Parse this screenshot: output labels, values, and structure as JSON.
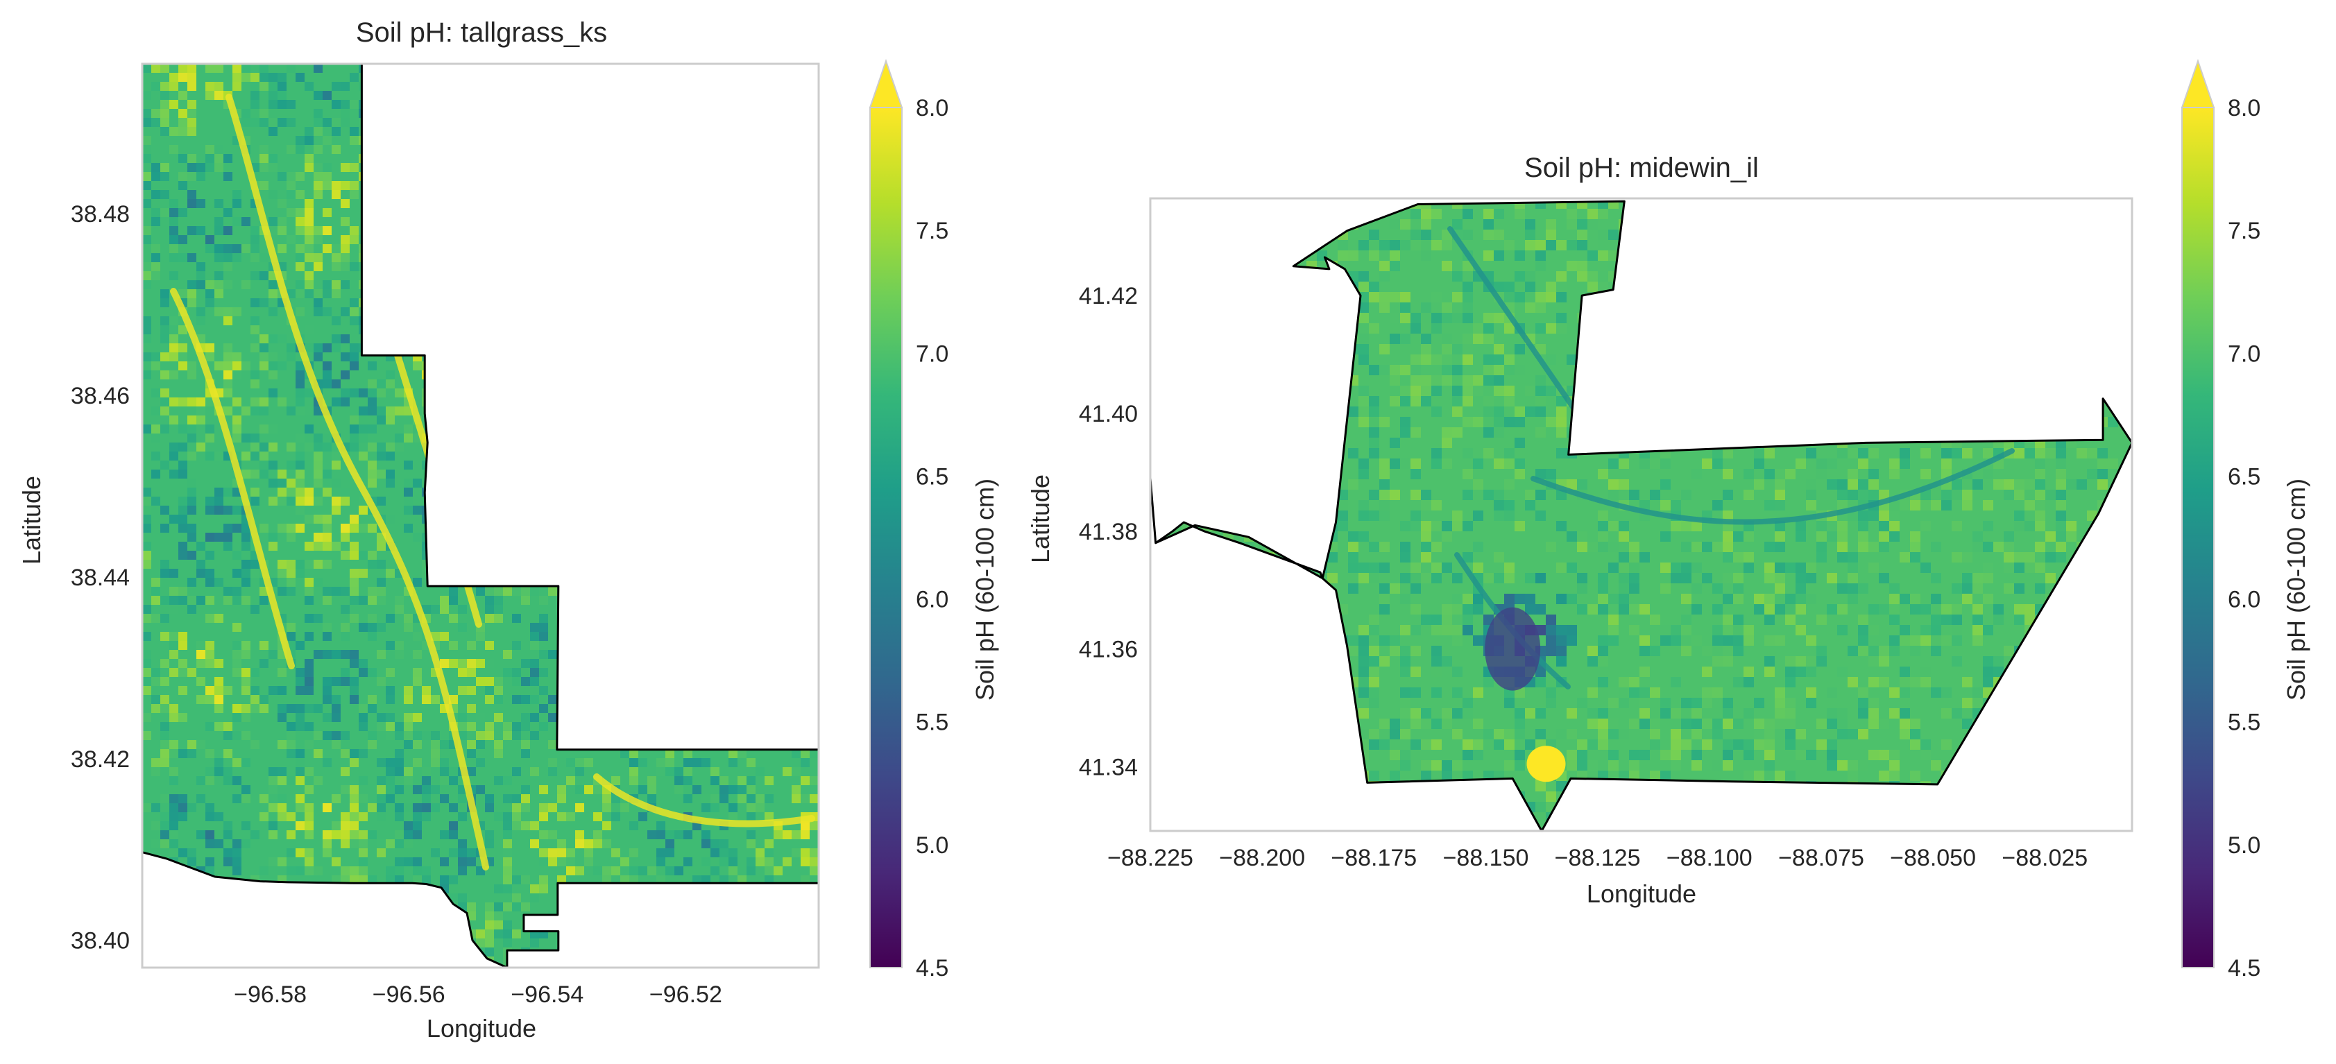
{
  "figure": {
    "panels": [
      {
        "id": "tallgrass_ks",
        "title": "Soil pH: tallgrass_ks",
        "xlabel": "Longitude",
        "ylabel": "Latitude",
        "xlim": [
          -96.5985,
          -96.5008
        ],
        "ylim": [
          38.397,
          38.4965
        ],
        "xticks": [
          {
            "value": -96.58,
            "label": "−96.58"
          },
          {
            "value": -96.56,
            "label": "−96.56"
          },
          {
            "value": -96.54,
            "label": "−96.54"
          },
          {
            "value": -96.52,
            "label": "−96.52"
          }
        ],
        "yticks": [
          {
            "value": 38.4,
            "label": "38.40"
          },
          {
            "value": 38.42,
            "label": "38.42"
          },
          {
            "value": 38.44,
            "label": "38.44"
          },
          {
            "value": 38.46,
            "label": "38.46"
          },
          {
            "value": 38.48,
            "label": "38.48"
          }
        ],
        "boundary": [
          [
            -96.5985,
            38.4965
          ],
          [
            -96.5668,
            38.4965
          ],
          [
            -96.5668,
            38.4644
          ],
          [
            -96.5577,
            38.4644
          ],
          [
            -96.5577,
            38.458
          ],
          [
            -96.5573,
            38.4548
          ],
          [
            -96.5577,
            38.4493
          ],
          [
            -96.5573,
            38.439
          ],
          [
            -96.5384,
            38.439
          ],
          [
            -96.5386,
            38.421
          ],
          [
            -96.5008,
            38.421
          ],
          [
            -96.5008,
            38.4063
          ],
          [
            -96.5385,
            38.4063
          ],
          [
            -96.5385,
            38.4028
          ],
          [
            -96.5434,
            38.4028
          ],
          [
            -96.5434,
            38.401
          ],
          [
            -96.5384,
            38.401
          ],
          [
            -96.5384,
            38.3989
          ],
          [
            -96.5458,
            38.3989
          ],
          [
            -96.5458,
            38.397
          ],
          [
            -96.5487,
            38.398
          ],
          [
            -96.5508,
            38.4
          ],
          [
            -96.5516,
            38.403
          ],
          [
            -96.5536,
            38.404
          ],
          [
            -96.5553,
            38.4058
          ],
          [
            -96.5575,
            38.4062
          ],
          [
            -96.5595,
            38.4063
          ],
          [
            -96.568,
            38.4063
          ],
          [
            -96.5775,
            38.4064
          ],
          [
            -96.5815,
            38.4065
          ],
          [
            -96.588,
            38.407
          ],
          [
            -96.595,
            38.409
          ],
          [
            -96.5985,
            38.4097
          ]
        ]
      },
      {
        "id": "midewin_il",
        "title": "Soil pH: midewin_il",
        "xlabel": "Longitude",
        "ylabel": "Latitude",
        "xlim": [
          -88.225,
          -88.0055
        ],
        "ylim": [
          41.3291,
          41.4365
        ],
        "xticks": [
          {
            "value": -88.225,
            "label": "−88.225"
          },
          {
            "value": -88.2,
            "label": "−88.200"
          },
          {
            "value": -88.175,
            "label": "−88.175"
          },
          {
            "value": -88.15,
            "label": "−88.150"
          },
          {
            "value": -88.125,
            "label": "−88.125"
          },
          {
            "value": -88.1,
            "label": "−88.100"
          },
          {
            "value": -88.075,
            "label": "−88.075"
          },
          {
            "value": -88.05,
            "label": "−88.050"
          },
          {
            "value": -88.025,
            "label": "−88.025"
          }
        ],
        "yticks": [
          {
            "value": 41.34,
            "label": "41.34"
          },
          {
            "value": 41.36,
            "label": "41.36"
          },
          {
            "value": 41.38,
            "label": "41.38"
          },
          {
            "value": 41.4,
            "label": "41.40"
          },
          {
            "value": 41.42,
            "label": "41.42"
          }
        ],
        "boundary": [
          [
            -88.1652,
            41.4355
          ],
          [
            -88.119,
            41.436
          ],
          [
            -88.1215,
            41.421
          ],
          [
            -88.1285,
            41.42
          ],
          [
            -88.1315,
            41.393
          ],
          [
            -88.065,
            41.395
          ],
          [
            -88.012,
            41.3955
          ],
          [
            -88.012,
            41.4025
          ],
          [
            -88.0055,
            41.395
          ],
          [
            -88.013,
            41.383
          ],
          [
            -88.049,
            41.337
          ],
          [
            -88.095,
            41.3375
          ],
          [
            -88.131,
            41.338
          ],
          [
            -88.1375,
            41.3291
          ],
          [
            -88.144,
            41.338
          ],
          [
            -88.1765,
            41.3373
          ],
          [
            -88.181,
            41.3605
          ],
          [
            -88.1835,
            41.37
          ],
          [
            -88.1865,
            41.372
          ],
          [
            -88.1835,
            41.3815
          ],
          [
            -88.178,
            41.42
          ],
          [
            -88.1815,
            41.4245
          ],
          [
            -88.186,
            41.4265
          ],
          [
            -88.185,
            41.4245
          ],
          [
            -88.193,
            41.425
          ],
          [
            -88.181,
            41.431
          ]
        ],
        "tail": [
          [
            -88.225,
            41.389
          ],
          [
            -88.2238,
            41.378
          ],
          [
            -88.22,
            41.38
          ],
          [
            -88.2175,
            41.3815
          ],
          [
            -88.213,
            41.38
          ],
          [
            -88.205,
            41.378
          ],
          [
            -88.187,
            41.373
          ],
          [
            -88.1865,
            41.372
          ],
          [
            -88.203,
            41.379
          ],
          [
            -88.215,
            41.381
          ],
          [
            -88.2238,
            41.378
          ]
        ]
      }
    ],
    "colorbar": {
      "label": "Soil pH (60-100 cm)",
      "range": [
        4.5,
        8.0
      ],
      "ticks": [
        {
          "value": 4.5,
          "label": "4.5"
        },
        {
          "value": 5.0,
          "label": "5.0"
        },
        {
          "value": 5.5,
          "label": "5.5"
        },
        {
          "value": 6.0,
          "label": "6.0"
        },
        {
          "value": 6.5,
          "label": "6.5"
        },
        {
          "value": 7.0,
          "label": "7.0"
        },
        {
          "value": 7.5,
          "label": "7.5"
        },
        {
          "value": 8.0,
          "label": "8.0"
        }
      ],
      "extend": "max",
      "colormap": "viridis",
      "colors": [
        "#440154",
        "#482878",
        "#3e4989",
        "#31688e",
        "#26828e",
        "#1f9e89",
        "#35b779",
        "#6ece58",
        "#b5de2b",
        "#fde725"
      ]
    },
    "style": {
      "frame_color": "#cccccc",
      "boundary_color": "#000000"
    }
  }
}
